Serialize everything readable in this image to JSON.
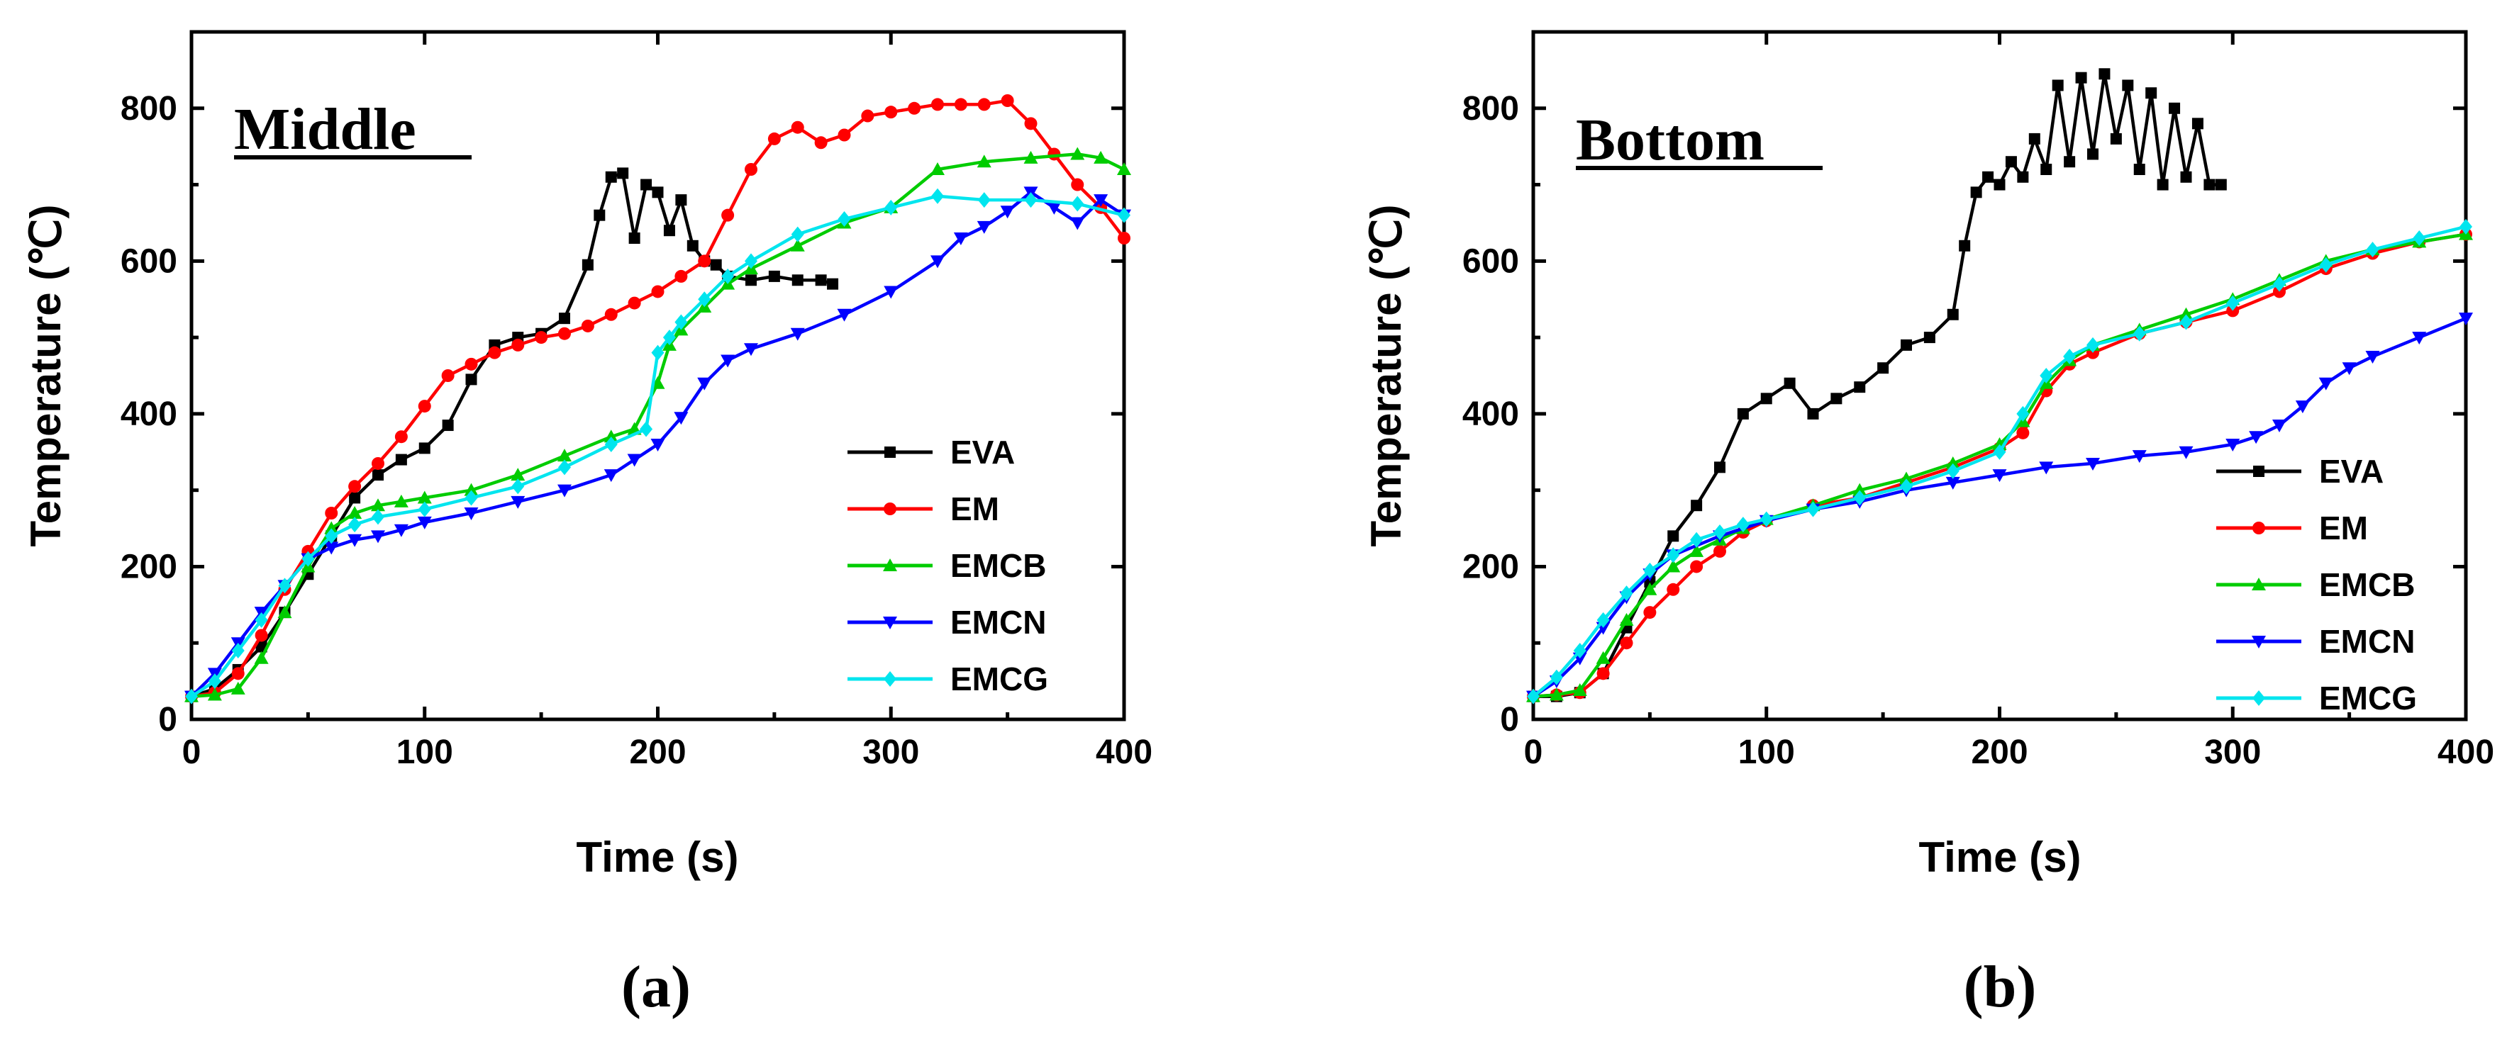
{
  "chart_data": [
    {
      "type": "line",
      "panel_label": "(a)",
      "title": "Middle",
      "xlabel": "Time (s)",
      "ylabel": "Temperature (℃)",
      "xlim": [
        0,
        400
      ],
      "ylim": [
        0,
        900
      ],
      "xticks": [
        0,
        100,
        200,
        300,
        400
      ],
      "yticks": [
        0,
        200,
        400,
        600,
        800
      ],
      "legend_position": "lower-right",
      "series": [
        {
          "name": "EVA",
          "color": "#000000",
          "marker": "square",
          "x": [
            0,
            10,
            20,
            30,
            40,
            50,
            60,
            70,
            80,
            90,
            100,
            110,
            120,
            130,
            140,
            150,
            160,
            170,
            175,
            180,
            185,
            190,
            195,
            200,
            205,
            210,
            215,
            220,
            225,
            230,
            240,
            250,
            260,
            270,
            275
          ],
          "y": [
            30,
            40,
            65,
            95,
            140,
            190,
            240,
            290,
            320,
            340,
            355,
            385,
            445,
            490,
            500,
            505,
            525,
            595,
            660,
            710,
            715,
            630,
            700,
            690,
            640,
            680,
            620,
            600,
            595,
            580,
            575,
            580,
            575,
            575,
            570
          ]
        },
        {
          "name": "EM",
          "color": "#ff0000",
          "marker": "circle",
          "x": [
            0,
            10,
            20,
            30,
            40,
            50,
            60,
            70,
            80,
            90,
            100,
            110,
            120,
            130,
            140,
            150,
            160,
            170,
            180,
            190,
            200,
            210,
            220,
            230,
            240,
            250,
            260,
            270,
            280,
            290,
            300,
            310,
            320,
            330,
            340,
            350,
            360,
            370,
            380,
            390,
            400
          ],
          "y": [
            30,
            35,
            60,
            110,
            170,
            220,
            270,
            305,
            335,
            370,
            410,
            450,
            465,
            480,
            490,
            500,
            505,
            515,
            530,
            545,
            560,
            580,
            600,
            660,
            720,
            760,
            775,
            755,
            765,
            790,
            795,
            800,
            805,
            805,
            805,
            810,
            780,
            740,
            700,
            670,
            630
          ]
        },
        {
          "name": "EMCB",
          "color": "#00cc00",
          "marker": "triangle-up",
          "x": [
            0,
            10,
            20,
            30,
            40,
            50,
            60,
            70,
            80,
            90,
            100,
            120,
            140,
            160,
            180,
            190,
            200,
            205,
            210,
            220,
            230,
            240,
            260,
            280,
            300,
            320,
            340,
            360,
            380,
            390,
            400
          ],
          "y": [
            30,
            32,
            40,
            80,
            140,
            200,
            250,
            270,
            280,
            285,
            290,
            300,
            320,
            345,
            370,
            380,
            440,
            490,
            510,
            540,
            570,
            590,
            620,
            650,
            670,
            720,
            730,
            735,
            740,
            735,
            720
          ]
        },
        {
          "name": "EMCN",
          "color": "#0000ff",
          "marker": "triangle-down",
          "x": [
            0,
            10,
            20,
            30,
            40,
            50,
            60,
            70,
            80,
            90,
            100,
            120,
            140,
            160,
            180,
            190,
            200,
            210,
            220,
            230,
            240,
            260,
            280,
            300,
            320,
            330,
            340,
            350,
            360,
            370,
            380,
            390,
            400
          ],
          "y": [
            30,
            60,
            100,
            140,
            175,
            210,
            225,
            235,
            240,
            248,
            258,
            270,
            285,
            300,
            320,
            340,
            360,
            395,
            440,
            470,
            485,
            505,
            530,
            560,
            600,
            630,
            645,
            665,
            690,
            670,
            650,
            680,
            660
          ]
        },
        {
          "name": "EMCG",
          "color": "#00e5ee",
          "marker": "diamond",
          "x": [
            0,
            10,
            20,
            30,
            40,
            50,
            60,
            70,
            80,
            100,
            120,
            140,
            160,
            180,
            195,
            200,
            205,
            210,
            220,
            230,
            240,
            260,
            280,
            300,
            320,
            340,
            360,
            380,
            400
          ],
          "y": [
            30,
            50,
            90,
            130,
            175,
            210,
            240,
            255,
            265,
            275,
            290,
            305,
            330,
            360,
            380,
            480,
            500,
            520,
            550,
            580,
            600,
            635,
            655,
            670,
            685,
            680,
            680,
            675,
            660
          ]
        }
      ]
    },
    {
      "type": "line",
      "panel_label": "(b)",
      "title": "Bottom",
      "xlabel": "Time (s)",
      "ylabel": "Temperature (℃)",
      "xlim": [
        0,
        400
      ],
      "ylim": [
        0,
        900
      ],
      "xticks": [
        0,
        100,
        200,
        300,
        400
      ],
      "yticks": [
        0,
        200,
        400,
        600,
        800
      ],
      "legend_position": "lower-right",
      "series": [
        {
          "name": "EVA",
          "color": "#000000",
          "marker": "square",
          "x": [
            0,
            10,
            20,
            30,
            40,
            50,
            60,
            70,
            80,
            90,
            100,
            110,
            120,
            130,
            140,
            150,
            160,
            170,
            180,
            185,
            190,
            195,
            200,
            205,
            210,
            215,
            220,
            225,
            230,
            235,
            240,
            245,
            250,
            255,
            260,
            265,
            270,
            275,
            280,
            285,
            290,
            295
          ],
          "y": [
            30,
            30,
            35,
            60,
            120,
            180,
            240,
            280,
            330,
            400,
            420,
            440,
            400,
            420,
            435,
            460,
            490,
            500,
            530,
            620,
            690,
            710,
            700,
            730,
            710,
            760,
            720,
            830,
            730,
            840,
            740,
            845,
            760,
            830,
            720,
            820,
            700,
            800,
            710,
            780,
            700,
            700
          ]
        },
        {
          "name": "EM",
          "color": "#ff0000",
          "marker": "circle",
          "x": [
            0,
            10,
            20,
            30,
            40,
            50,
            60,
            70,
            80,
            90,
            100,
            120,
            140,
            160,
            180,
            200,
            210,
            220,
            230,
            240,
            260,
            280,
            300,
            320,
            340,
            360,
            380,
            400
          ],
          "y": [
            30,
            32,
            35,
            60,
            100,
            140,
            170,
            200,
            220,
            245,
            260,
            280,
            290,
            310,
            330,
            355,
            375,
            430,
            465,
            480,
            505,
            520,
            535,
            560,
            590,
            610,
            625,
            635
          ]
        },
        {
          "name": "EMCB",
          "color": "#00cc00",
          "marker": "triangle-up",
          "x": [
            0,
            10,
            20,
            30,
            40,
            50,
            60,
            70,
            80,
            90,
            100,
            120,
            140,
            160,
            180,
            200,
            210,
            220,
            230,
            240,
            260,
            280,
            300,
            320,
            340,
            360,
            380,
            400
          ],
          "y": [
            30,
            32,
            38,
            80,
            130,
            170,
            200,
            220,
            235,
            250,
            262,
            280,
            300,
            315,
            335,
            360,
            390,
            440,
            470,
            490,
            510,
            530,
            550,
            575,
            600,
            615,
            625,
            635
          ]
        },
        {
          "name": "EMCN",
          "color": "#0000ff",
          "marker": "triangle-down",
          "x": [
            0,
            10,
            20,
            30,
            40,
            50,
            60,
            80,
            100,
            120,
            140,
            160,
            180,
            200,
            220,
            240,
            260,
            280,
            300,
            310,
            320,
            330,
            340,
            350,
            360,
            380,
            400
          ],
          "y": [
            30,
            50,
            80,
            120,
            160,
            190,
            215,
            240,
            260,
            275,
            285,
            300,
            310,
            320,
            330,
            335,
            345,
            350,
            360,
            370,
            385,
            410,
            440,
            460,
            475,
            500,
            525
          ]
        },
        {
          "name": "EMCG",
          "color": "#00e5ee",
          "marker": "diamond",
          "x": [
            0,
            10,
            20,
            30,
            40,
            50,
            60,
            70,
            80,
            90,
            100,
            120,
            140,
            160,
            180,
            200,
            210,
            220,
            230,
            240,
            260,
            280,
            300,
            320,
            340,
            360,
            380,
            400
          ],
          "y": [
            30,
            55,
            90,
            130,
            165,
            195,
            215,
            235,
            245,
            255,
            262,
            275,
            290,
            305,
            325,
            350,
            400,
            450,
            475,
            490,
            505,
            520,
            545,
            570,
            595,
            615,
            630,
            645
          ]
        }
      ]
    }
  ]
}
